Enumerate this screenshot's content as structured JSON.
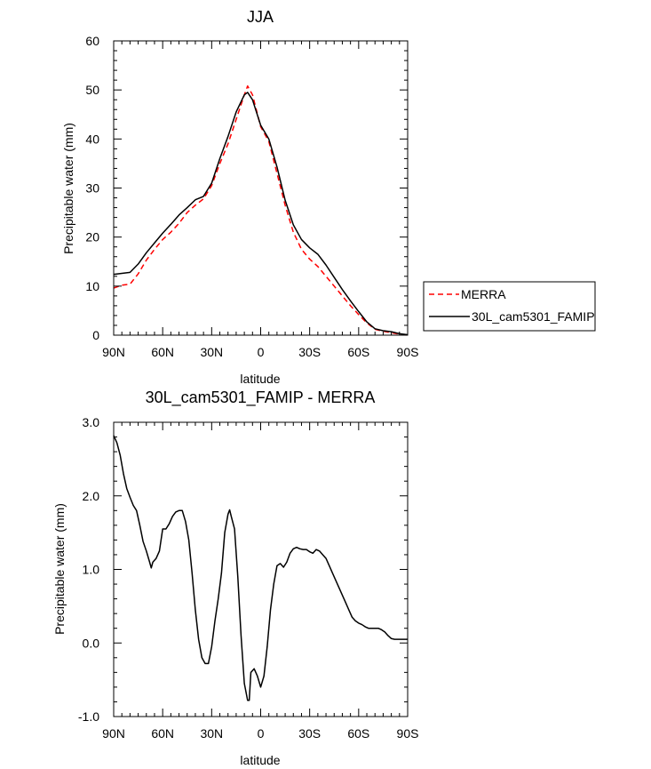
{
  "chart_data": [
    {
      "type": "line",
      "title": "JJA",
      "xlabel": "latitude",
      "ylabel": "Precipitable water (mm)",
      "xlim": [
        90,
        -90
      ],
      "ylim": [
        0,
        60
      ],
      "x_ticks": [
        90,
        60,
        30,
        0,
        -30,
        -60,
        -90
      ],
      "x_tick_labels": [
        "90N",
        "60N",
        "30N",
        "0",
        "30S",
        "60S",
        "90S"
      ],
      "y_ticks": [
        0,
        10,
        20,
        30,
        40,
        50,
        60
      ],
      "y_tick_labels": [
        "0",
        "10",
        "20",
        "30",
        "40",
        "50",
        "60"
      ],
      "grid": false,
      "legend_position": "right",
      "series": [
        {
          "name": "MERRA",
          "color": "#ff0000",
          "dash": "dashed",
          "x": [
            90,
            85,
            80,
            75,
            70,
            65,
            60,
            55,
            50,
            45,
            40,
            35,
            30,
            25,
            20,
            15,
            10,
            8,
            5,
            0,
            -5,
            -10,
            -15,
            -20,
            -25,
            -30,
            -35,
            -40,
            -45,
            -50,
            -55,
            -60,
            -65,
            -70,
            -75,
            -80,
            -85,
            -90
          ],
          "y": [
            9.6,
            10.2,
            10.4,
            12.5,
            15.3,
            17.5,
            19.5,
            21.0,
            22.8,
            25.0,
            26.5,
            27.8,
            30.5,
            35.0,
            39.0,
            44.0,
            49.0,
            50.8,
            49.0,
            42.5,
            39.5,
            33.0,
            26.5,
            21.0,
            17.5,
            15.5,
            14.0,
            12.0,
            10.0,
            8.0,
            6.0,
            4.2,
            2.5,
            1.2,
            0.8,
            0.5,
            0.2,
            0.0
          ]
        },
        {
          "name": "30L_cam5301_FAMIP",
          "color": "#000000",
          "dash": "solid",
          "x": [
            90,
            85,
            80,
            75,
            70,
            65,
            60,
            55,
            50,
            45,
            40,
            35,
            30,
            25,
            20,
            15,
            10,
            8,
            5,
            0,
            -5,
            -10,
            -15,
            -20,
            -25,
            -30,
            -35,
            -40,
            -45,
            -50,
            -55,
            -60,
            -65,
            -70,
            -75,
            -80,
            -85,
            -90
          ],
          "y": [
            12.4,
            12.6,
            12.8,
            14.5,
            16.8,
            18.8,
            20.8,
            22.6,
            24.5,
            26.0,
            27.6,
            28.3,
            31.0,
            36.0,
            40.5,
            45.5,
            49.0,
            49.5,
            48.0,
            42.8,
            40.0,
            34.3,
            27.5,
            22.5,
            19.5,
            17.8,
            16.5,
            14.3,
            11.8,
            9.3,
            7.0,
            4.8,
            2.7,
            1.3,
            0.9,
            0.7,
            0.3,
            0.1
          ]
        }
      ]
    },
    {
      "type": "line",
      "title": "30L_cam5301_FAMIP - MERRA",
      "xlabel": "latitude",
      "ylabel": "Precipitable water (mm)",
      "xlim": [
        90,
        -90
      ],
      "ylim": [
        -1.0,
        3.0
      ],
      "x_ticks": [
        90,
        60,
        30,
        0,
        -30,
        -60,
        -90
      ],
      "x_tick_labels": [
        "90N",
        "60N",
        "30N",
        "0",
        "30S",
        "60S",
        "90S"
      ],
      "y_ticks": [
        -1.0,
        0.0,
        1.0,
        2.0,
        3.0
      ],
      "y_tick_labels": [
        "-1.0",
        "0.0",
        "1.0",
        "2.0",
        "3.0"
      ],
      "grid": false,
      "series": [
        {
          "color": "#000000",
          "dash": "solid",
          "x": [
            90,
            88,
            86,
            84,
            82,
            80,
            78,
            76,
            74,
            72,
            70,
            68,
            67,
            66,
            64,
            62,
            60,
            58,
            56,
            54,
            52,
            50,
            48,
            46,
            44,
            42,
            40,
            38,
            36,
            34,
            32,
            30,
            28,
            26,
            24,
            22,
            20,
            19,
            18,
            16,
            14,
            12,
            10,
            8,
            7,
            6,
            4,
            2,
            0,
            -2,
            -4,
            -6,
            -8,
            -10,
            -12,
            -14,
            -16,
            -18,
            -20,
            -22,
            -24,
            -26,
            -28,
            -30,
            -32,
            -34,
            -36,
            -38,
            -40,
            -42,
            -44,
            -46,
            -48,
            -50,
            -52,
            -54,
            -56,
            -58,
            -60,
            -62,
            -64,
            -66,
            -68,
            -70,
            -72,
            -74,
            -76,
            -78,
            -80,
            -82,
            -84,
            -86,
            -88,
            -90
          ],
          "y": [
            2.82,
            2.72,
            2.55,
            2.3,
            2.1,
            1.98,
            1.87,
            1.8,
            1.6,
            1.38,
            1.25,
            1.1,
            1.02,
            1.1,
            1.15,
            1.25,
            1.55,
            1.55,
            1.62,
            1.72,
            1.78,
            1.8,
            1.8,
            1.65,
            1.4,
            0.95,
            0.45,
            0.05,
            -0.2,
            -0.28,
            -0.28,
            -0.05,
            0.3,
            0.6,
            0.95,
            1.5,
            1.75,
            1.81,
            1.72,
            1.55,
            0.9,
            0.1,
            -0.55,
            -0.78,
            -0.78,
            -0.4,
            -0.35,
            -0.45,
            -0.6,
            -0.45,
            -0.05,
            0.45,
            0.8,
            1.05,
            1.08,
            1.03,
            1.1,
            1.22,
            1.28,
            1.3,
            1.28,
            1.27,
            1.27,
            1.24,
            1.22,
            1.27,
            1.25,
            1.2,
            1.15,
            1.05,
            0.95,
            0.85,
            0.75,
            0.65,
            0.55,
            0.45,
            0.35,
            0.3,
            0.27,
            0.25,
            0.22,
            0.2,
            0.2,
            0.2,
            0.2,
            0.18,
            0.15,
            0.1,
            0.06,
            0.05,
            0.05,
            0.05,
            0.05,
            0.05
          ]
        }
      ]
    }
  ]
}
